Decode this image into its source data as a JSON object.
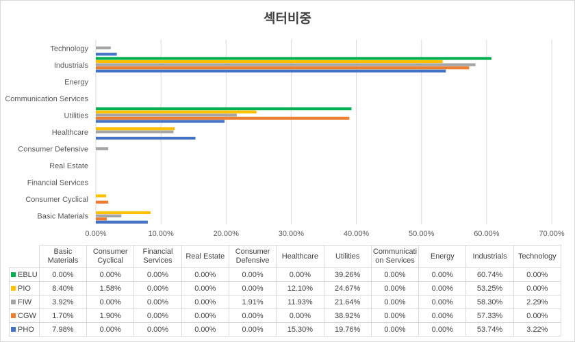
{
  "chart_data": {
    "type": "bar",
    "orientation": "horizontal",
    "title": "섹터비중",
    "xlabel": "",
    "ylabel": "",
    "xlim": [
      0,
      70
    ],
    "x_ticks": [
      "0.00%",
      "10.00%",
      "20.00%",
      "30.00%",
      "40.00%",
      "50.00%",
      "60.00%",
      "70.00%"
    ],
    "grid": true,
    "legend": "data-table-bottom",
    "categories": [
      "Basic Materials",
      "Consumer Cyclical",
      "Financial Services",
      "Real Estate",
      "Consumer Defensive",
      "Healthcare",
      "Utilities",
      "Communication Services",
      "Energy",
      "Industrials",
      "Technology"
    ],
    "table_headers": [
      "Basic Materials",
      "Consumer Cyclical",
      "Financial Services",
      "Real Estate",
      "Consumer Defensive",
      "Healthcare",
      "Utilities",
      "Communicati on Services",
      "Energy",
      "Industrials",
      "Technology"
    ],
    "series": [
      {
        "name": "EBLU",
        "color": "#00b050",
        "values": [
          0.0,
          0.0,
          0.0,
          0.0,
          0.0,
          0.0,
          39.26,
          0.0,
          0.0,
          60.74,
          0.0
        ],
        "labels": [
          "0.00%",
          "0.00%",
          "0.00%",
          "0.00%",
          "0.00%",
          "0.00%",
          "39.26%",
          "0.00%",
          "0.00%",
          "60.74%",
          "0.00%"
        ]
      },
      {
        "name": "PIO",
        "color": "#ffc000",
        "values": [
          8.4,
          1.58,
          0.0,
          0.0,
          0.0,
          12.1,
          24.67,
          0.0,
          0.0,
          53.25,
          0.0
        ],
        "labels": [
          "8.40%",
          "1.58%",
          "0.00%",
          "0.00%",
          "0.00%",
          "12.10%",
          "24.67%",
          "0.00%",
          "0.00%",
          "53.25%",
          "0.00%"
        ]
      },
      {
        "name": "FIW",
        "color": "#a5a5a5",
        "values": [
          3.92,
          0.0,
          0.0,
          0.0,
          1.91,
          11.93,
          21.64,
          0.0,
          0.0,
          58.3,
          2.29
        ],
        "labels": [
          "3.92%",
          "0.00%",
          "0.00%",
          "0.00%",
          "1.91%",
          "11.93%",
          "21.64%",
          "0.00%",
          "0.00%",
          "58.30%",
          "2.29%"
        ]
      },
      {
        "name": "CGW",
        "color": "#ed7d31",
        "values": [
          1.7,
          1.9,
          0.0,
          0.0,
          0.0,
          0.0,
          38.92,
          0.0,
          0.0,
          57.33,
          0.0
        ],
        "labels": [
          "1.70%",
          "1.90%",
          "0.00%",
          "0.00%",
          "0.00%",
          "0.00%",
          "38.92%",
          "0.00%",
          "0.00%",
          "57.33%",
          "0.00%"
        ]
      },
      {
        "name": "PHO",
        "color": "#4472c4",
        "values": [
          7.98,
          0.0,
          0.0,
          0.0,
          0.0,
          15.3,
          19.76,
          0.0,
          0.0,
          53.74,
          3.22
        ],
        "labels": [
          "7.98%",
          "0.00%",
          "0.00%",
          "0.00%",
          "0.00%",
          "15.30%",
          "19.76%",
          "0.00%",
          "0.00%",
          "53.74%",
          "3.22%"
        ]
      }
    ]
  }
}
